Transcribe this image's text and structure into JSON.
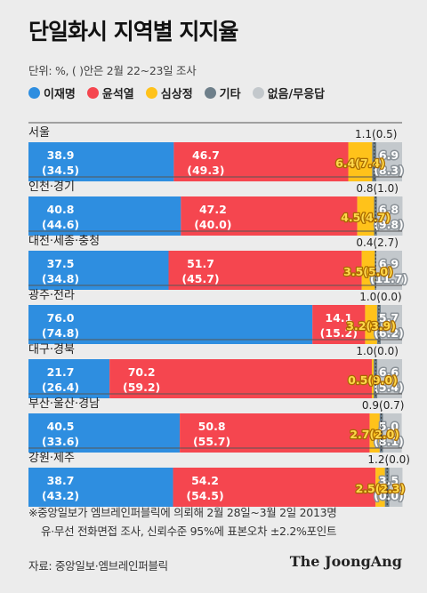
{
  "title": "단일화시 지역별 지지율",
  "unit_note": "단위: %, ( )안은 2월 22~23일 조사",
  "colors": {
    "lee": "#2e8ee0",
    "yoon": "#f5464f",
    "sim": "#ffc21a",
    "other": "#6e7f8a",
    "none": "#c3c8cc"
  },
  "chart_data": {
    "type": "bar",
    "orientation": "horizontal",
    "stacked": true,
    "ylim": [
      0,
      100
    ],
    "categories": [
      "서울",
      "인천·경기",
      "대전·세종·충청",
      "광주·전라",
      "대구·경북",
      "부산·울산·경남",
      "강원·제주"
    ],
    "series": [
      {
        "key": "lee",
        "name": "이재명",
        "values": [
          38.9,
          40.8,
          37.5,
          76.0,
          21.7,
          40.5,
          38.7
        ],
        "prev": [
          34.5,
          44.6,
          34.8,
          74.8,
          26.4,
          33.6,
          43.2
        ],
        "labels": [
          "38.9",
          "40.8",
          "37.5",
          "76.0",
          "21.7",
          "40.5",
          "38.7"
        ],
        "prev_labels": [
          "(34.5)",
          "(44.6)",
          "(34.8)",
          "(74.8)",
          "(26.4)",
          "(33.6)",
          "(43.2)"
        ]
      },
      {
        "key": "yoon",
        "name": "윤석열",
        "values": [
          46.7,
          47.2,
          51.7,
          14.1,
          70.2,
          50.8,
          54.2
        ],
        "prev": [
          49.3,
          40.0,
          45.7,
          15.2,
          59.2,
          55.7,
          54.5
        ],
        "labels": [
          "46.7",
          "47.2",
          "51.7",
          "14.1",
          "70.2",
          "50.8",
          "54.2"
        ],
        "prev_labels": [
          "(49.3)",
          "(40.0)",
          "(45.7)",
          "(15.2)",
          "(59.2)",
          "(55.7)",
          "(54.5)"
        ]
      },
      {
        "key": "sim",
        "name": "심상정",
        "values": [
          6.4,
          4.5,
          3.5,
          3.2,
          0.5,
          2.7,
          2.5
        ],
        "prev": [
          7.4,
          4.7,
          5.0,
          3.9,
          9.0,
          2.0,
          2.3
        ],
        "labels": [
          "6.4(7.4)",
          "4.5(4.7)",
          "3.5(5.0)",
          "3.2(3.9)",
          "0.5(9.0)",
          "2.7(2.0)",
          "2.5(2.3)"
        ]
      },
      {
        "key": "other",
        "name": "기타",
        "values": [
          1.1,
          0.8,
          0.4,
          1.0,
          1.0,
          0.9,
          1.2
        ],
        "prev": [
          0.5,
          1.0,
          2.7,
          0.0,
          0.0,
          0.7,
          0.0
        ],
        "labels": [
          "1.1(0.5)",
          "0.8(1.0)",
          "0.4(2.7)",
          "1.0(0.0)",
          "1.0(0.0)",
          "0.9(0.7)",
          "1.2(0.0)"
        ]
      },
      {
        "key": "none",
        "name": "없음/무응답",
        "values": [
          6.9,
          6.8,
          6.9,
          5.7,
          6.6,
          5.0,
          3.5
        ],
        "prev": [
          8.3,
          9.8,
          11.7,
          6.2,
          5.4,
          8.1,
          0.0
        ],
        "labels": [
          "6.9",
          "6.8",
          "6.9",
          "5.7",
          "6.6",
          "5.0",
          "3.5"
        ],
        "prev_labels": [
          "(8.3)",
          "(9.8)",
          "(11.7)",
          "(6.2)",
          "(5.4)",
          "(8.1)",
          "(0.0)"
        ]
      }
    ]
  },
  "footnote": {
    "line1": "※중앙일보가 엠브레인퍼블릭에 의뢰해 2월 28일~3월 2일 2013명",
    "line2": "유·무선 전화면접 조사, 신뢰수준 95%에 표본오차 ±2.2%포인트"
  },
  "source": "자료: 중앙일보·엠브레인퍼블릭",
  "brand": "The JoongAng"
}
